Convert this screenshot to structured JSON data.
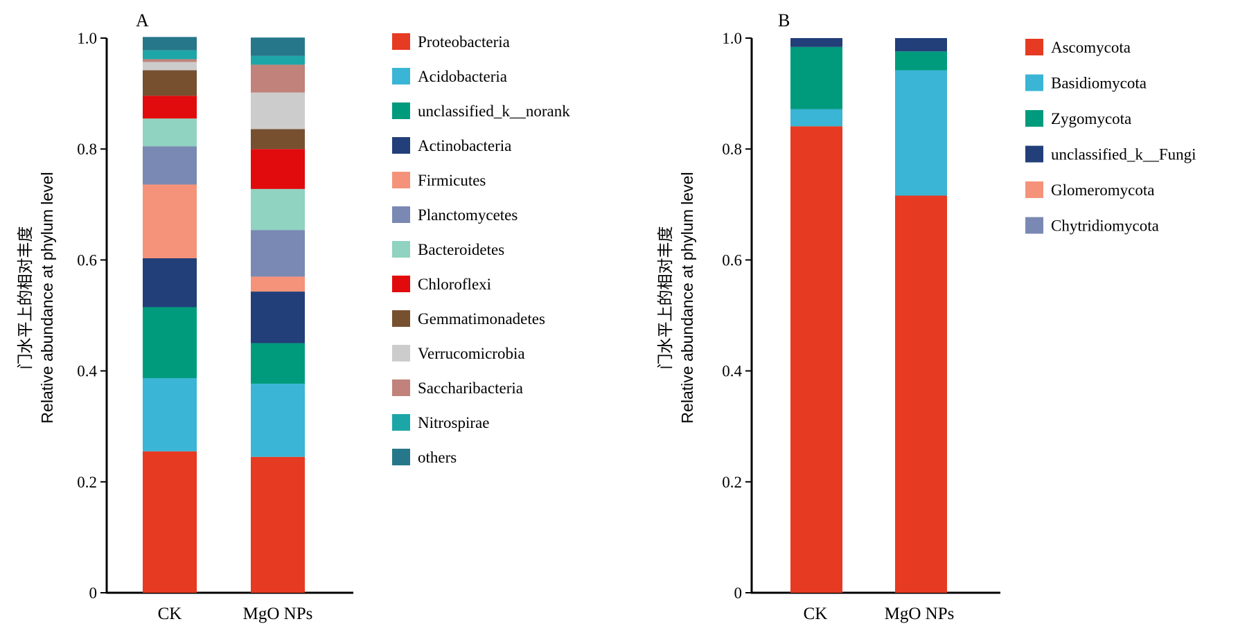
{
  "chart_data": [
    {
      "type": "bar",
      "stacked": true,
      "panel_label": "A",
      "ylabel_cn": "门水平上的相对丰度",
      "ylabel": "Relative abundance at phylum level",
      "ylim": [
        0,
        1.0
      ],
      "yticks": [
        "0",
        "0.2",
        "0.4",
        "0.6",
        "0.8",
        "1.0"
      ],
      "categories": [
        "CK",
        "MgO NPs"
      ],
      "legend_position": "right",
      "series": [
        {
          "name": "Proteobacteria",
          "color": "#e63a22",
          "values": [
            0.255,
            0.245
          ]
        },
        {
          "name": "Acidobacteria",
          "color": "#3ab5d5",
          "values": [
            0.132,
            0.132
          ]
        },
        {
          "name": "unclassified_k__norank",
          "color": "#009b7c",
          "values": [
            0.128,
            0.073
          ]
        },
        {
          "name": "Actinobacteria",
          "color": "#223f7a",
          "values": [
            0.088,
            0.093
          ]
        },
        {
          "name": "Firmicutes",
          "color": "#f4937a",
          "values": [
            0.133,
            0.027
          ]
        },
        {
          "name": "Planctomycetes",
          "color": "#7a89b3",
          "values": [
            0.069,
            0.084
          ]
        },
        {
          "name": "Bacteroidetes",
          "color": "#8fd3c0",
          "values": [
            0.05,
            0.074
          ]
        },
        {
          "name": "Chloroflexi",
          "color": "#e10a0d",
          "values": [
            0.041,
            0.072
          ]
        },
        {
          "name": "Gemmatimonadetes",
          "color": "#775030",
          "values": [
            0.046,
            0.036
          ]
        },
        {
          "name": "Verrucomicrobia",
          "color": "#cccccc",
          "values": [
            0.015,
            0.066
          ]
        },
        {
          "name": "Saccharibacteria",
          "color": "#c0827a",
          "values": [
            0.005,
            0.05
          ]
        },
        {
          "name": "Nitrospirae",
          "color": "#1da6a8",
          "values": [
            0.016,
            0.016
          ]
        },
        {
          "name": "others",
          "color": "#267789",
          "values": [
            0.024,
            0.033
          ]
        }
      ]
    },
    {
      "type": "bar",
      "stacked": true,
      "panel_label": "B",
      "ylabel_cn": "门水平上的相对丰度",
      "ylabel": "Relative abundance at phylum level",
      "ylim": [
        0,
        1.0
      ],
      "yticks": [
        "0",
        "0.2",
        "0.4",
        "0.6",
        "0.8",
        "1.0"
      ],
      "categories": [
        "CK",
        "MgO NPs"
      ],
      "legend_position": "right",
      "series": [
        {
          "name": "Ascomycota",
          "color": "#e63a22",
          "values": [
            0.841,
            0.716
          ]
        },
        {
          "name": "Basidiomycota",
          "color": "#3ab5d5",
          "values": [
            0.031,
            0.226
          ]
        },
        {
          "name": "Zygomycota",
          "color": "#009b7c",
          "values": [
            0.112,
            0.034
          ]
        },
        {
          "name": "unclassified_k__Fungi",
          "color": "#223f7a",
          "values": [
            0.016,
            0.024
          ]
        },
        {
          "name": "Glomeromycota",
          "color": "#f4937a",
          "values": [
            0.0,
            0.0
          ]
        },
        {
          "name": "Chytridiomycota",
          "color": "#7a89b3",
          "values": [
            0.0,
            0.0
          ]
        }
      ]
    }
  ]
}
